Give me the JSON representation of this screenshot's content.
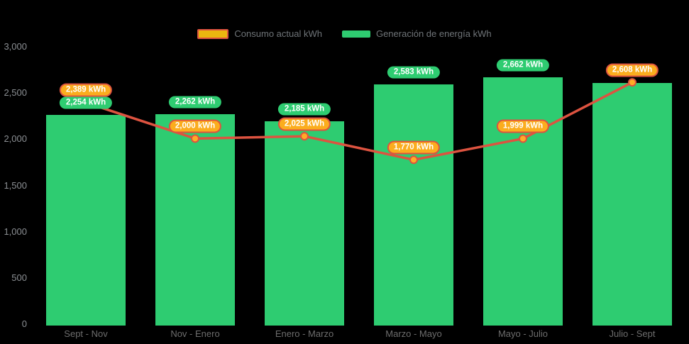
{
  "page": {
    "background": "#000000"
  },
  "legend": {
    "items": [
      {
        "id": "consumption",
        "label": "Consumo actual kWh",
        "swatch_fill": "#EAB60F",
        "swatch_border": "#DD5340"
      },
      {
        "id": "generation",
        "label": "Generación de energía kWh",
        "swatch_fill": "#2ECC71",
        "swatch_border": ""
      }
    ]
  },
  "chart_data": {
    "type": "combo-bar-line",
    "title": "",
    "xlabel": "",
    "ylabel": "",
    "unit": "kWh",
    "categories": [
      "Sept - Nov",
      "Nov - Enero",
      "Enero - Marzo",
      "Marzo - Mayo",
      "Mayo - Julio",
      "Julio - Sept"
    ],
    "series": [
      {
        "id": "consumption",
        "name": "Consumo actual kWh",
        "type": "line",
        "color": "#DD5340",
        "point_fill": "#FFAC26",
        "values": [
          2389,
          2000,
          2025,
          1770,
          1999,
          2608
        ],
        "labels": [
          "2,389 kWh",
          "2,000 kWh",
          "2,025 kWh",
          "1,770 kWh",
          "1,999 kWh",
          "2,608 kWh"
        ]
      },
      {
        "id": "generation",
        "name": "Generación de energía kWh",
        "type": "bar",
        "color": "#2ECC71",
        "values": [
          2254,
          2262,
          2185,
          2583,
          2662,
          2600
        ],
        "labels": [
          "2,254 kWh",
          "2,262 kWh",
          "2,185 kWh",
          "2,583 kWh",
          "2,662 kWh",
          null
        ]
      }
    ],
    "ylim": [
      0,
      3000
    ],
    "yticks": [
      0,
      500,
      1000,
      1500,
      2000,
      2500,
      3000
    ],
    "ytick_labels": [
      "0",
      "500",
      "1,000",
      "1,500",
      "2,000",
      "2,500",
      "3,000"
    ],
    "grid": false,
    "legend_position": "top-center"
  }
}
